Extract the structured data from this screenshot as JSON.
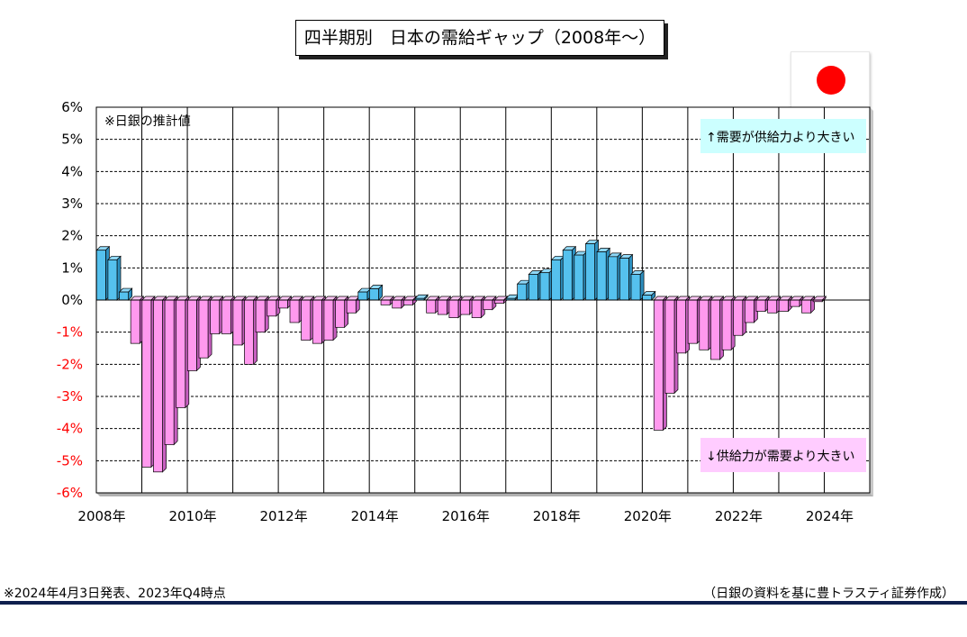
{
  "title": "四半期別　日本の需給ギャップ（2008年～）",
  "flag": {
    "icon": "japan-flag-icon",
    "color": "#ff0000"
  },
  "footer": {
    "left_note": "※2024年4月3日発表、2023年Q4時点",
    "right_note": "（日銀の資料を基に豊トラスティ証券作成）"
  },
  "chart_data": {
    "type": "bar",
    "annotations": {
      "estimate_note": "※日銀の推計値",
      "positive_label": "↑需要が供給力より大きい",
      "negative_label": "↓供給力が需要より大きい"
    },
    "y_ticks": [
      "6%",
      "5%",
      "4%",
      "3%",
      "2%",
      "1%",
      "0%",
      "-1%",
      "-2%",
      "-3%",
      "-4%",
      "-5%",
      "-6%"
    ],
    "x_ticks": [
      "2008年",
      "2010年",
      "2012年",
      "2014年",
      "2016年",
      "2018年",
      "2020年",
      "2022年",
      "2024年"
    ],
    "ylim": [
      -6,
      6
    ],
    "unit": "%",
    "grid": true,
    "colors": {
      "positive": "#55c1ee",
      "negative": "#ff99ee",
      "positive_label_bg": "#ccffff",
      "negative_label_bg": "#ffccff",
      "negative_tick": "#ff0000"
    },
    "categories": [
      "2008Q1",
      "2008Q2",
      "2008Q3",
      "2008Q4",
      "2009Q1",
      "2009Q2",
      "2009Q3",
      "2009Q4",
      "2010Q1",
      "2010Q2",
      "2010Q3",
      "2010Q4",
      "2011Q1",
      "2011Q2",
      "2011Q3",
      "2011Q4",
      "2012Q1",
      "2012Q2",
      "2012Q3",
      "2012Q4",
      "2013Q1",
      "2013Q2",
      "2013Q3",
      "2013Q4",
      "2014Q1",
      "2014Q2",
      "2014Q3",
      "2014Q4",
      "2015Q1",
      "2015Q2",
      "2015Q3",
      "2015Q4",
      "2016Q1",
      "2016Q2",
      "2016Q3",
      "2016Q4",
      "2017Q1",
      "2017Q2",
      "2017Q3",
      "2017Q4",
      "2018Q1",
      "2018Q2",
      "2018Q3",
      "2018Q4",
      "2019Q1",
      "2019Q2",
      "2019Q3",
      "2019Q4",
      "2020Q1",
      "2020Q2",
      "2020Q3",
      "2020Q4",
      "2021Q1",
      "2021Q2",
      "2021Q3",
      "2021Q4",
      "2022Q1",
      "2022Q2",
      "2022Q3",
      "2022Q4",
      "2023Q1",
      "2023Q2",
      "2023Q3",
      "2023Q4"
    ],
    "values": [
      1.55,
      1.25,
      0.25,
      -1.35,
      -5.2,
      -5.35,
      -4.5,
      -3.35,
      -2.2,
      -1.8,
      -1.05,
      -1.05,
      -1.4,
      -2.0,
      -1.0,
      -0.5,
      -0.25,
      -0.7,
      -1.25,
      -1.35,
      -1.25,
      -0.85,
      -0.4,
      0.25,
      0.35,
      -0.15,
      -0.25,
      -0.15,
      0.05,
      -0.4,
      -0.45,
      -0.55,
      -0.45,
      -0.55,
      -0.3,
      -0.1,
      0.05,
      0.5,
      0.8,
      0.85,
      1.25,
      1.55,
      1.4,
      1.75,
      1.5,
      1.35,
      1.3,
      0.8,
      0.15,
      -4.05,
      -2.9,
      -1.65,
      -1.35,
      -1.55,
      -1.85,
      -1.55,
      -1.1,
      -0.7,
      -0.35,
      -0.4,
      -0.35,
      -0.2,
      -0.4,
      -0.05
    ]
  }
}
